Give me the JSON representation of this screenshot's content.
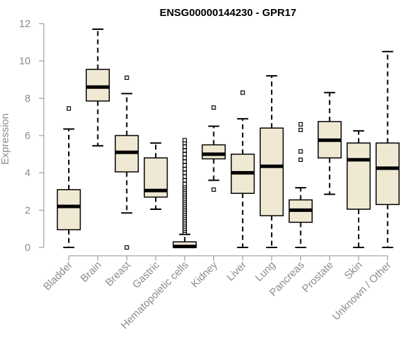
{
  "chart_data": {
    "type": "box",
    "title": "ENSG00000144230 - GPR17",
    "xlabel": "",
    "ylabel": "Expression",
    "ylim": [
      0,
      12
    ],
    "yticks": [
      0,
      2,
      4,
      6,
      8,
      10,
      12
    ],
    "categories": [
      "Bladder",
      "Brain",
      "Breast",
      "Gastric",
      "Hematopoietic cells",
      "Kidney",
      "Liver",
      "Lung",
      "Pancreas",
      "Prostate",
      "Skin",
      "Unknown / Other"
    ],
    "boxes": [
      {
        "category": "Bladder",
        "whisker_low": 0.0,
        "q1": 0.95,
        "median": 2.2,
        "q3": 3.1,
        "whisker_high": 6.35,
        "outliers": [
          7.45
        ]
      },
      {
        "category": "Brain",
        "whisker_low": 5.45,
        "q1": 7.85,
        "median": 8.6,
        "q3": 9.55,
        "whisker_high": 11.7,
        "outliers": []
      },
      {
        "category": "Breast",
        "whisker_low": 1.85,
        "q1": 4.05,
        "median": 5.1,
        "q3": 6.0,
        "whisker_high": 8.25,
        "outliers": [
          9.1,
          0.0
        ]
      },
      {
        "category": "Gastric",
        "whisker_low": 2.05,
        "q1": 2.7,
        "median": 3.05,
        "q3": 4.8,
        "whisker_high": 5.6,
        "outliers": []
      },
      {
        "category": "Hematopoietic cells",
        "whisker_low": 0.0,
        "q1": 0.0,
        "median": 0.05,
        "q3": 0.3,
        "whisker_high": 0.7,
        "outliers": [
          0.8,
          0.9,
          1.0,
          1.1,
          1.2,
          1.3,
          1.4,
          1.5,
          1.6,
          1.7,
          1.8,
          1.9,
          2.0,
          2.1,
          2.2,
          2.3,
          2.4,
          2.5,
          2.6,
          2.7,
          2.8,
          2.9,
          3.0,
          3.1,
          3.2,
          3.3,
          3.4,
          3.6,
          3.8,
          4.0,
          4.2,
          4.4,
          4.6,
          4.8,
          5.0,
          5.2,
          5.4,
          5.6,
          5.75
        ]
      },
      {
        "category": "Kidney",
        "whisker_low": 3.6,
        "q1": 4.75,
        "median": 5.0,
        "q3": 5.5,
        "whisker_high": 6.5,
        "outliers": [
          7.5,
          3.1
        ]
      },
      {
        "category": "Liver",
        "whisker_low": 0.0,
        "q1": 2.9,
        "median": 4.0,
        "q3": 5.0,
        "whisker_high": 6.9,
        "outliers": [
          8.3
        ]
      },
      {
        "category": "Lung",
        "whisker_low": 0.0,
        "q1": 1.7,
        "median": 4.35,
        "q3": 6.4,
        "whisker_high": 9.2,
        "outliers": []
      },
      {
        "category": "Pancreas",
        "whisker_low": 0.0,
        "q1": 1.35,
        "median": 2.0,
        "q3": 2.55,
        "whisker_high": 3.2,
        "outliers": [
          6.6,
          6.3,
          5.15,
          4.7
        ]
      },
      {
        "category": "Prostate",
        "whisker_low": 2.85,
        "q1": 4.8,
        "median": 5.75,
        "q3": 6.75,
        "whisker_high": 8.3,
        "outliers": []
      },
      {
        "category": "Skin",
        "whisker_low": 0.0,
        "q1": 2.05,
        "median": 4.7,
        "q3": 5.6,
        "whisker_high": 6.25,
        "outliers": []
      },
      {
        "category": "Unknown / Other",
        "whisker_low": 0.0,
        "q1": 2.3,
        "median": 4.25,
        "q3": 5.6,
        "whisker_high": 10.5,
        "outliers": []
      }
    ],
    "box_fill": "#efe8d3",
    "box_stroke": "#000000",
    "median_color": "#000000",
    "axis_color": "#8c8c8c",
    "grid": false
  }
}
